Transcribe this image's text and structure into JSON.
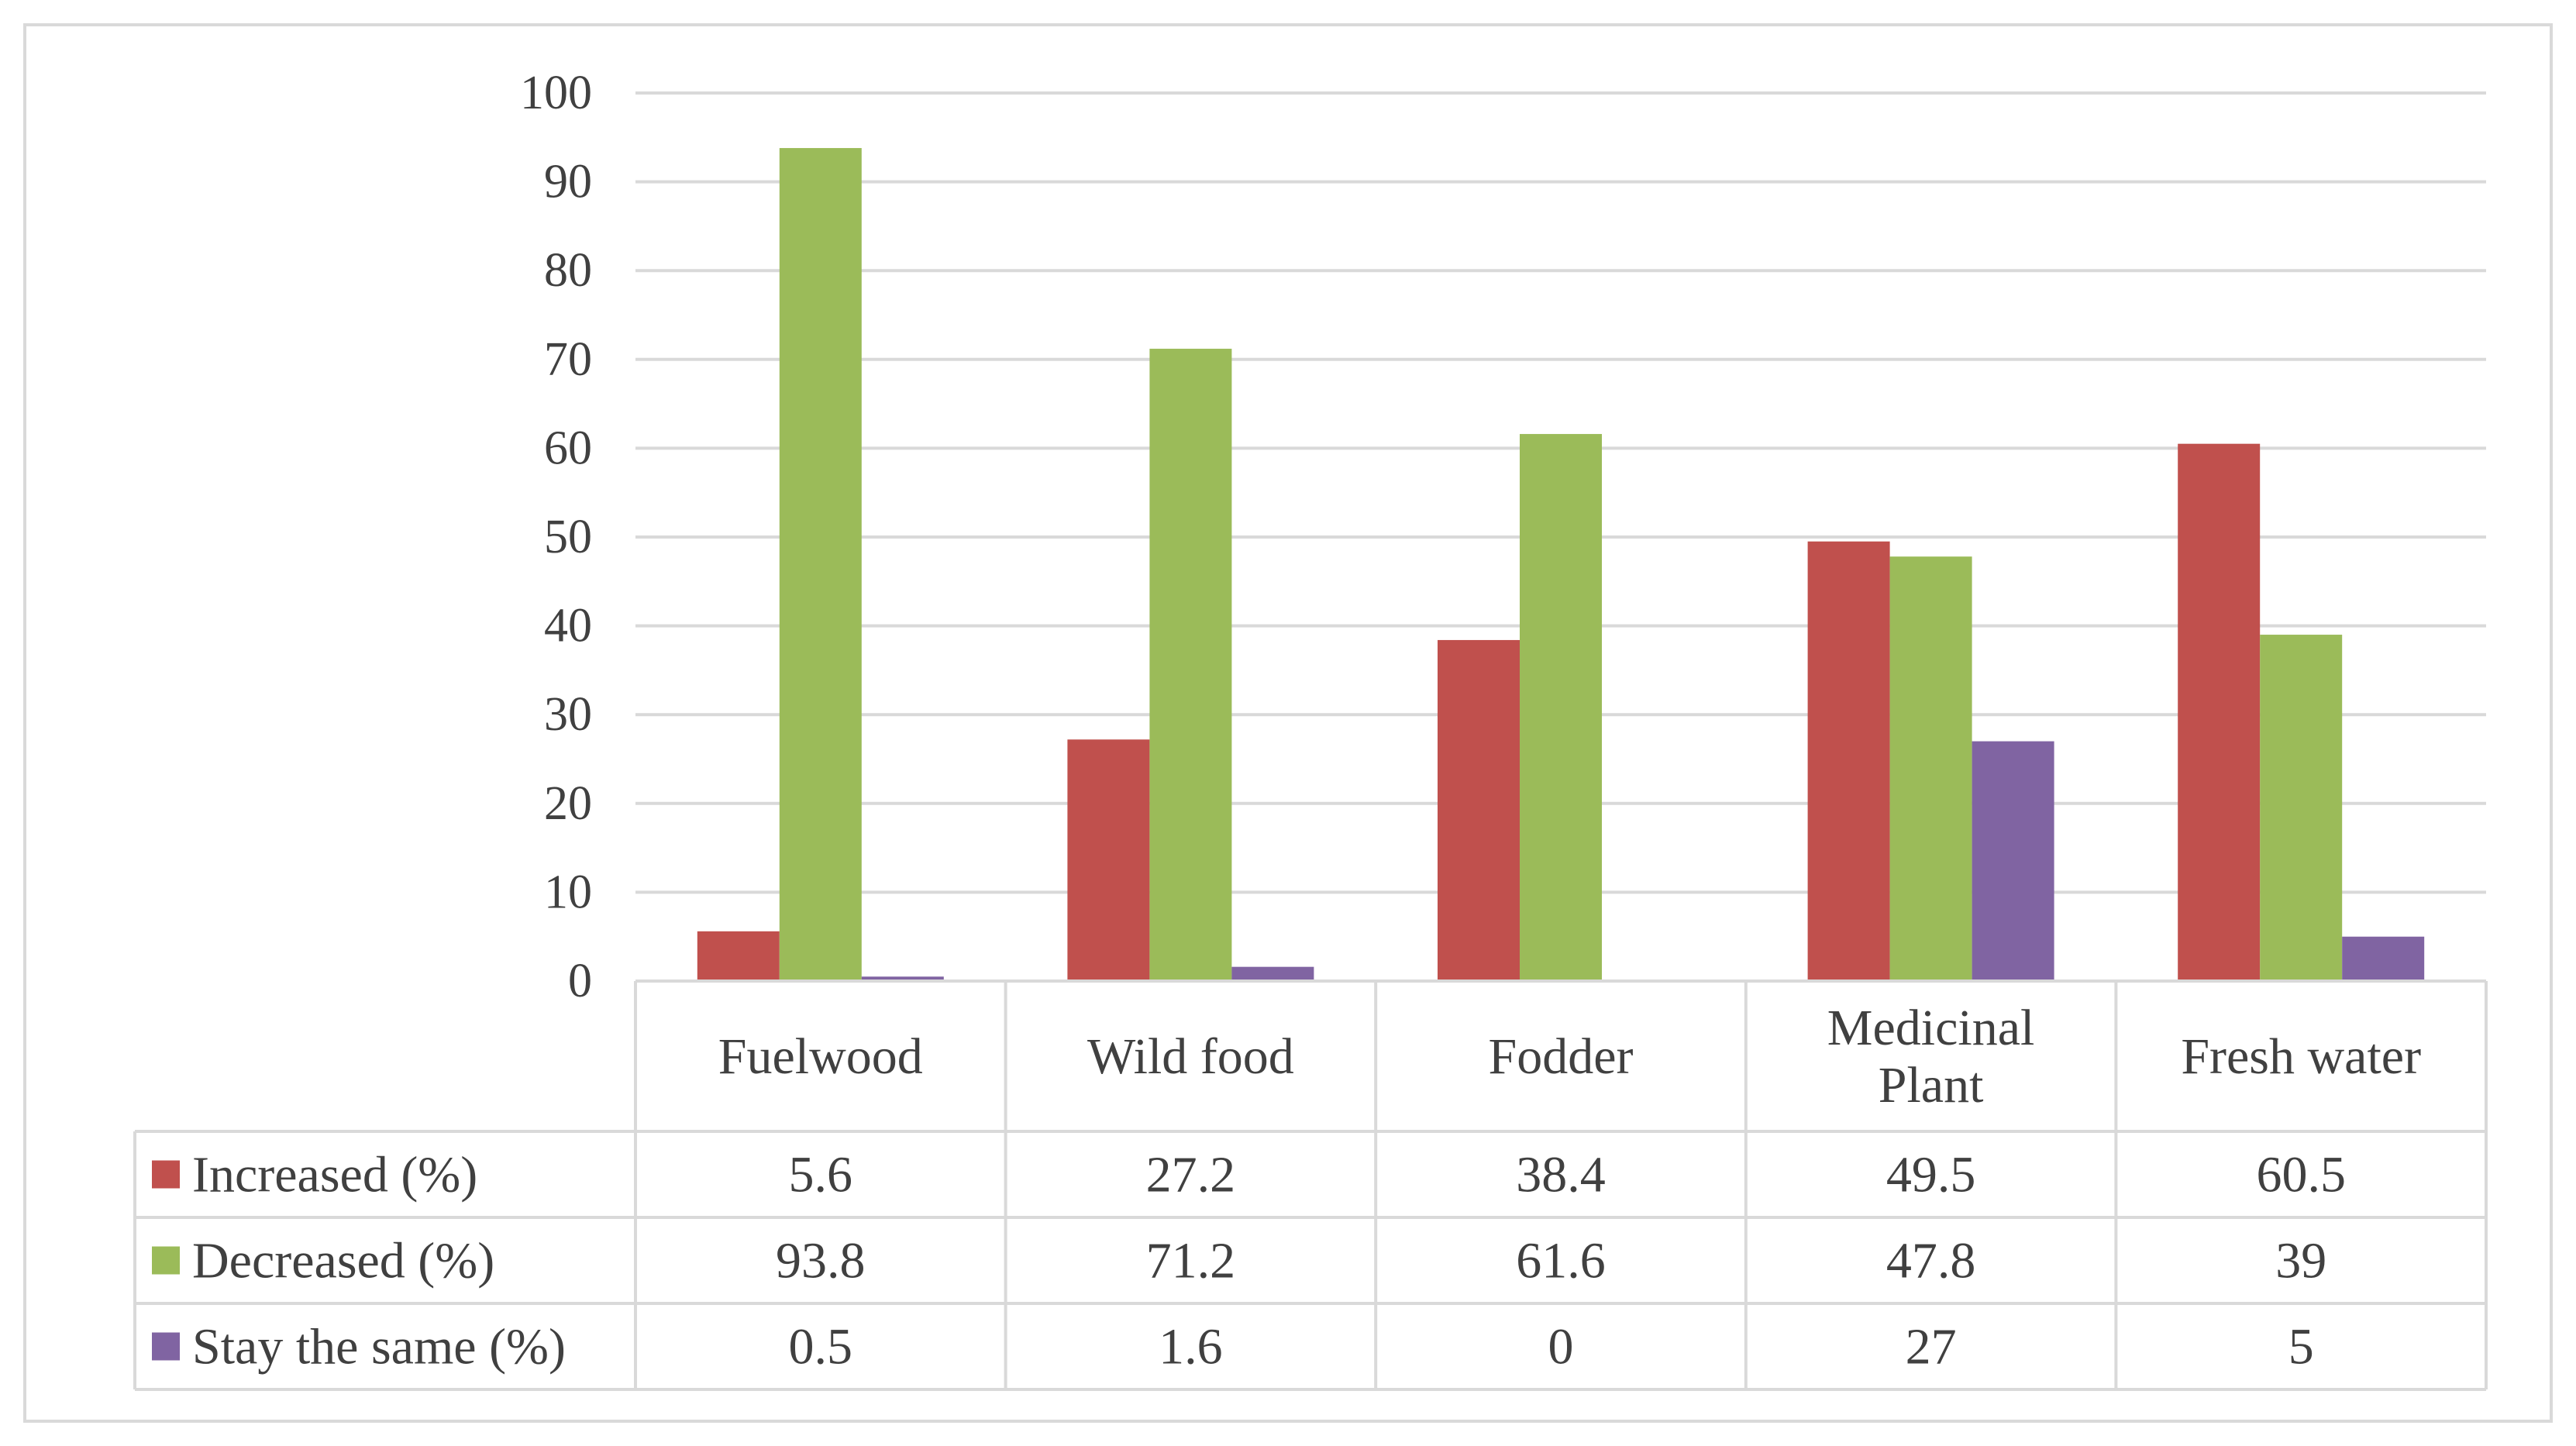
{
  "chart_data": {
    "type": "bar",
    "title": "",
    "xlabel": "",
    "ylabel": "",
    "ylim": [
      0,
      100
    ],
    "yticks": [
      0,
      10,
      20,
      30,
      40,
      50,
      60,
      70,
      80,
      90,
      100
    ],
    "grid": true,
    "legend_position": "data-table",
    "categories": [
      [
        "Fuelwood"
      ],
      [
        "Wild food"
      ],
      [
        "Fodder"
      ],
      [
        "Medicinal",
        "Plant"
      ],
      [
        "Fresh water"
      ]
    ],
    "series": [
      {
        "name": "Increased (%)",
        "color": "#c0504d",
        "values": [
          5.6,
          27.2,
          38.4,
          49.5,
          60.5
        ],
        "labels": [
          "5.6",
          "27.2",
          "38.4",
          "49.5",
          "60.5"
        ]
      },
      {
        "name": "Decreased (%)",
        "color": "#9bbb59",
        "values": [
          93.8,
          71.2,
          61.6,
          47.8,
          39
        ],
        "labels": [
          "93.8",
          "71.2",
          "61.6",
          "47.8",
          "39"
        ]
      },
      {
        "name": "Stay the same (%)",
        "color": "#8064a2",
        "values": [
          0.5,
          1.6,
          0,
          27,
          5
        ],
        "labels": [
          "0.5",
          "1.6",
          "0",
          "27",
          "5"
        ]
      }
    ],
    "gridline_color": "#d9d9d9",
    "table_border_color": "#d9d9d9"
  }
}
